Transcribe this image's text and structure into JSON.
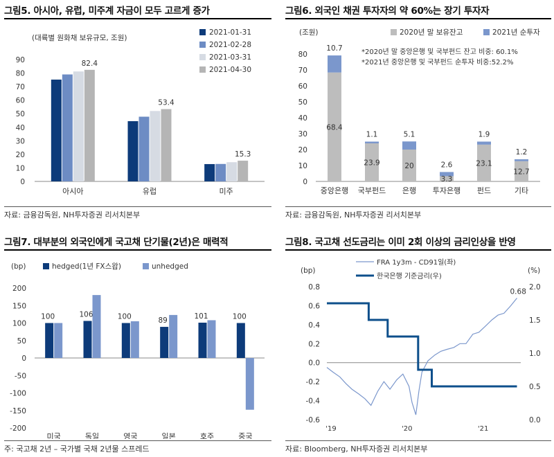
{
  "charts": [
    {
      "title": "그림5. 아시아, 유럽, 미주계 자금이 모두 고르게 증가",
      "source": "자료: 금융감독원, NH투자증권 리서치본부",
      "chart_data": {
        "type": "bar",
        "ylabel": "(대륙별 원화채 보유규모, 조원)",
        "ylim": [
          0,
          90
        ],
        "yticks": [
          0,
          10,
          20,
          30,
          40,
          50,
          60,
          70,
          80,
          90
        ],
        "categories": [
          "아시아",
          "유럽",
          "미주"
        ],
        "legend_position": "top-right",
        "series": [
          {
            "name": "2021-01-31",
            "color": "#0d3b7a",
            "values": [
              75.2,
              44.5,
              12.8
            ]
          },
          {
            "name": "2021-02-28",
            "color": "#6d8cc4",
            "values": [
              79.0,
              47.8,
              12.9
            ]
          },
          {
            "name": "2021-03-31",
            "color": "#d6dbe3",
            "values": [
              81.2,
              52.0,
              14.2
            ]
          },
          {
            "name": "2021-04-30",
            "color": "#b5b5b5",
            "values": [
              82.4,
              53.4,
              15.3
            ]
          }
        ],
        "data_labels": [
          "82.4",
          "53.4",
          "15.3"
        ]
      }
    },
    {
      "title": "그림6. 외국인 채권 투자자의 약 60%는 장기 투자자",
      "source": "자료: 금융감독원, NH투자증권 리서치본부",
      "chart_data": {
        "type": "bar",
        "stacked": true,
        "ylabel": "(조원)",
        "ylim": [
          0,
          80
        ],
        "yticks": [
          0,
          10,
          20,
          30,
          40,
          50,
          60,
          70,
          80
        ],
        "categories": [
          "중앙은행",
          "국부펀드",
          "은행",
          "투자은행",
          "펀드",
          "기타"
        ],
        "legend_position": "top",
        "series": [
          {
            "name": "2020년 말 보유잔고",
            "color": "#bdbdbd",
            "values": [
              68.4,
              23.9,
              20,
              3.3,
              23.1,
              12.7
            ]
          },
          {
            "name": "2021년 순투자",
            "color": "#7b97cc",
            "values": [
              10.7,
              1.1,
              5.1,
              2.6,
              1.9,
              1.2
            ]
          }
        ],
        "annotations": [
          "*2020년 말 중앙은행 및 국부펀드 잔고 비중: 60.1%",
          "*2021년 중앙은행 및 국부펀드 순투자 비중:52.2%"
        ]
      }
    },
    {
      "title": "그림7. 대부분의 외국인에게 국고채 단기물(2년)은 매력적",
      "source": "주: 국고채 2년 – 국가별 국채 2년물 스프레드",
      "chart_data": {
        "type": "bar",
        "ylabel": "(bp)",
        "ylim": [
          -200,
          200
        ],
        "yticks": [
          -200,
          -150,
          -100,
          -50,
          0,
          50,
          100,
          150,
          200
        ],
        "categories": [
          "미국",
          "독일",
          "영국",
          "일본",
          "호주",
          "중국"
        ],
        "legend_position": "top",
        "series": [
          {
            "name": "hedged(1년 FX스왑)",
            "color": "#0d3b7a",
            "values": [
              100,
              106,
              100,
              89,
              101,
              100
            ]
          },
          {
            "name": "unhedged",
            "color": "#7b97cc",
            "values": [
              100,
              180,
              105,
              123,
              108,
              -148
            ]
          }
        ],
        "data_labels": [
          "100",
          "106",
          "100",
          "89",
          "101",
          "100"
        ]
      }
    },
    {
      "title": "그림8. 국고채 선도금리는 이미 2회 이상의 금리인상을 반영",
      "source": "자료: Bloomberg, NH투자증권 리서치본부",
      "chart_data": {
        "type": "line",
        "ylabel": "(bp)",
        "y2label": "(%)",
        "ylim": [
          -0.6,
          0.8
        ],
        "yticks": [
          -0.6,
          -0.4,
          -0.2,
          0.0,
          0.2,
          0.4,
          0.6,
          0.8
        ],
        "y2lim": [
          0.0,
          2.0
        ],
        "y2ticks": [
          0.0,
          0.5,
          1.0,
          1.5,
          2.0
        ],
        "xlim": [
          2019.0,
          2021.55
        ],
        "xticks": [
          {
            "x": 2019.0,
            "label": "'19"
          },
          {
            "x": 2020.0,
            "label": "'20"
          },
          {
            "x": 2021.0,
            "label": "'21"
          }
        ],
        "legend_position": "top-center",
        "end_label": "0.68",
        "series": [
          {
            "name": "FRA 1y3m - CD91일(좌)",
            "axis": "left",
            "color": "#7b97cc",
            "x": [
              2019.0,
              2019.08,
              2019.17,
              2019.25,
              2019.33,
              2019.42,
              2019.5,
              2019.58,
              2019.67,
              2019.75,
              2019.83,
              2019.92,
              2020.0,
              2020.08,
              2020.12,
              2020.17,
              2020.21,
              2020.25,
              2020.33,
              2020.42,
              2020.5,
              2020.58,
              2020.67,
              2020.75,
              2020.83,
              2020.92,
              2021.0,
              2021.08,
              2021.17,
              2021.25,
              2021.33,
              2021.42,
              2021.5
            ],
            "values": [
              -0.05,
              -0.1,
              -0.15,
              -0.22,
              -0.28,
              -0.33,
              -0.38,
              -0.45,
              -0.3,
              -0.2,
              -0.28,
              -0.18,
              -0.12,
              -0.25,
              -0.42,
              -0.55,
              -0.3,
              -0.1,
              0.02,
              0.08,
              0.12,
              0.14,
              0.16,
              0.2,
              0.2,
              0.3,
              0.32,
              0.38,
              0.45,
              0.5,
              0.52,
              0.6,
              0.68
            ]
          },
          {
            "name": "한국은행 기준금리(우)",
            "axis": "right",
            "color": "#0d4f8b",
            "x": [
              2019.0,
              2019.55,
              2019.55,
              2019.8,
              2019.8,
              2020.2,
              2020.2,
              2020.38,
              2020.38,
              2021.5
            ],
            "values": [
              1.75,
              1.75,
              1.5,
              1.5,
              1.25,
              1.25,
              0.75,
              0.75,
              0.5,
              0.5
            ]
          }
        ]
      }
    }
  ]
}
